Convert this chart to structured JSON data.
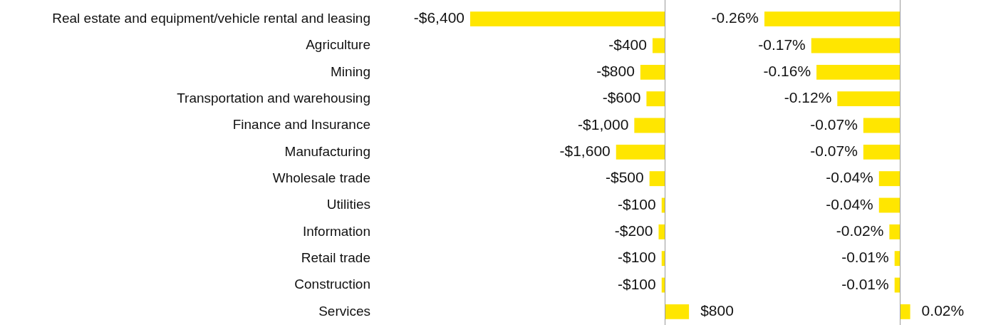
{
  "chart_data": [
    {
      "type": "bar",
      "orientation": "horizontal",
      "categories": [
        "Real estate and equipment/vehicle rental and leasing",
        "Agriculture",
        "Mining",
        "Transportation and warehousing",
        "Finance and Insurance",
        "Manufacturing",
        "Wholesale trade",
        "Utilities",
        "Information",
        "Retail trade",
        "Construction",
        "Services"
      ],
      "values": [
        -6400,
        -400,
        -800,
        -600,
        -1000,
        -1600,
        -500,
        -100,
        -200,
        -100,
        -100,
        800
      ],
      "value_labels": [
        "-$6,400",
        "-$400",
        "-$800",
        "-$600",
        "-$1,000",
        "-$1,600",
        "-$500",
        "-$100",
        "-$200",
        "-$100",
        "-$100",
        "$800"
      ],
      "color": "#ffe600",
      "tick_labels": "y"
    },
    {
      "type": "bar",
      "orientation": "horizontal",
      "categories": [
        null,
        null,
        null,
        null,
        null,
        null,
        null,
        null,
        null,
        null,
        null,
        null
      ],
      "values": [
        -0.26,
        -0.17,
        -0.16,
        -0.12,
        -0.07,
        -0.07,
        -0.04,
        -0.04,
        -0.02,
        -0.01,
        -0.01,
        0.02
      ],
      "value_labels": [
        "-0.26%",
        "-0.17%",
        "-0.16%",
        "-0.12%",
        "-0.07%",
        "-0.07%",
        "-0.04%",
        "-0.04%",
        "-0.02%",
        "-0.01%",
        "-0.01%",
        "0.02%"
      ],
      "color": "#ffe600",
      "tick_labels": false
    }
  ]
}
